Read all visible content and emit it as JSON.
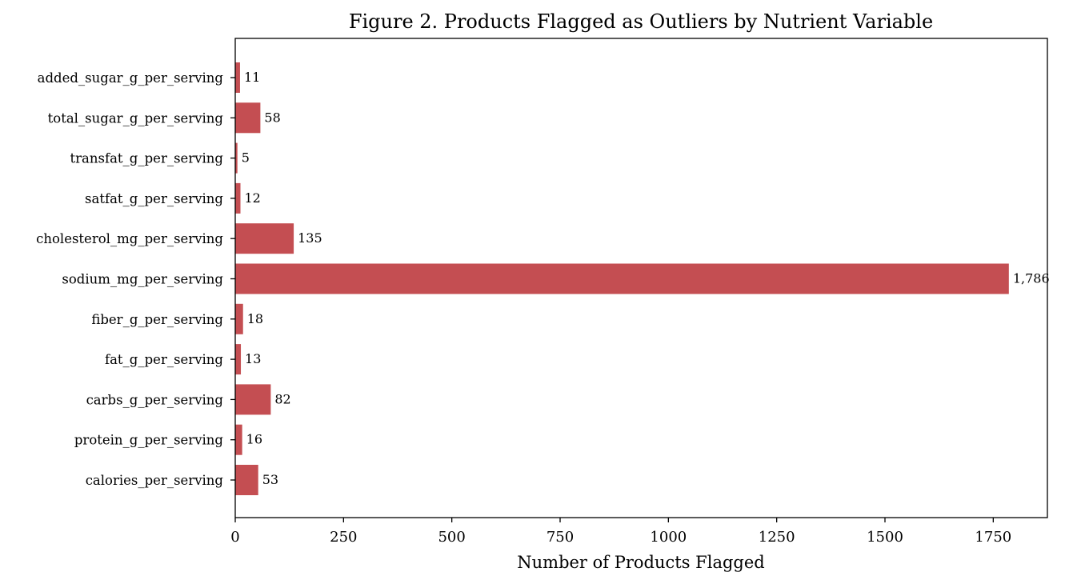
{
  "chart_data": {
    "type": "bar",
    "orientation": "horizontal",
    "title": "Figure 2. Products Flagged as Outliers by Nutrient Variable",
    "xlabel": "Number of Products Flagged",
    "ylabel": "",
    "categories": [
      "calories_per_serving",
      "protein_g_per_serving",
      "carbs_g_per_serving",
      "fat_g_per_serving",
      "fiber_g_per_serving",
      "sodium_mg_per_serving",
      "cholesterol_mg_per_serving",
      "satfat_g_per_serving",
      "transfat_g_per_serving",
      "total_sugar_g_per_serving",
      "added_sugar_g_per_serving"
    ],
    "values": [
      53,
      16,
      82,
      13,
      18,
      1786,
      135,
      12,
      5,
      58,
      11
    ],
    "value_labels": [
      "53",
      "16",
      "82",
      "13",
      "18",
      "1,786",
      "135",
      "12",
      "5",
      "58",
      "11"
    ],
    "xlim": [
      0,
      1875
    ],
    "xticks": [
      0,
      250,
      500,
      750,
      1000,
      1250,
      1500,
      1750
    ],
    "xtick_labels": [
      "0",
      "250",
      "500",
      "750",
      "1000",
      "1250",
      "1500",
      "1750"
    ],
    "grid": false,
    "bar_color": "#c44e52"
  }
}
